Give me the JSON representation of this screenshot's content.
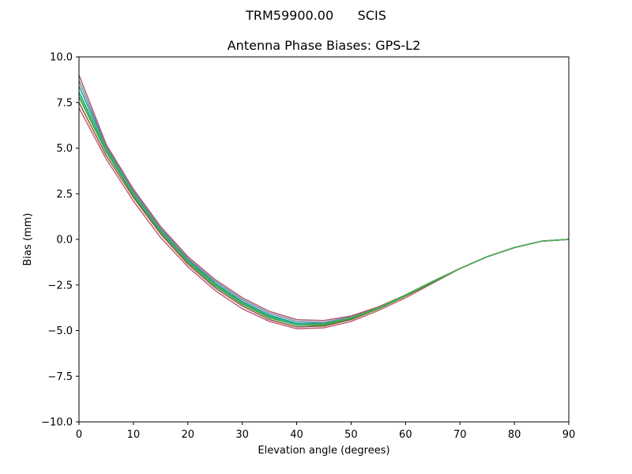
{
  "figure": {
    "suptitle": "TRM59900.00      SCIS"
  },
  "chart_data": {
    "type": "line",
    "title": "Antenna Phase Biases: GPS-L2",
    "xlabel": "Elevation angle (degrees)",
    "ylabel": "Bias (mm)",
    "xlim": [
      0,
      90
    ],
    "ylim": [
      -10,
      10
    ],
    "xticks": [
      0,
      10,
      20,
      30,
      40,
      50,
      60,
      70,
      80,
      90
    ],
    "yticks": [
      10.0,
      7.5,
      5.0,
      2.5,
      0.0,
      -2.5,
      -5.0,
      -7.5,
      -10.0
    ],
    "ytick_labels": [
      "10.0",
      "7.5",
      "5.0",
      "2.5",
      "0.0",
      "−2.5",
      "−5.0",
      "−7.5",
      "−10.0"
    ],
    "grid": false,
    "legend": "none",
    "x": [
      0,
      5,
      10,
      15,
      20,
      25,
      30,
      35,
      40,
      45,
      50,
      55,
      60,
      65,
      70,
      75,
      80,
      85,
      90
    ],
    "series": [
      {
        "color": "#c06070",
        "values": [
          7.2,
          4.4,
          2.1,
          0.1,
          -1.5,
          -2.8,
          -3.8,
          -4.5,
          -4.9,
          -4.85,
          -4.5,
          -3.9,
          -3.2,
          -2.4,
          -1.6,
          -0.95,
          -0.45,
          -0.1,
          0.0
        ]
      },
      {
        "color": "#8c564b",
        "values": [
          7.5,
          4.6,
          2.3,
          0.3,
          -1.35,
          -2.65,
          -3.65,
          -4.4,
          -4.8,
          -4.75,
          -4.4,
          -3.8,
          -3.1,
          -2.35,
          -1.6,
          -0.95,
          -0.45,
          -0.1,
          0.0
        ]
      },
      {
        "color": "#2ca02c",
        "values": [
          7.8,
          4.8,
          2.4,
          0.4,
          -1.25,
          -2.55,
          -3.55,
          -4.3,
          -4.7,
          -4.7,
          -4.35,
          -3.8,
          -3.1,
          -2.35,
          -1.6,
          -0.95,
          -0.45,
          -0.1,
          0.0
        ]
      },
      {
        "color": "#17becf",
        "values": [
          8.1,
          4.95,
          2.5,
          0.5,
          -1.15,
          -2.45,
          -3.45,
          -4.2,
          -4.65,
          -4.6,
          -4.3,
          -3.75,
          -3.05,
          -2.3,
          -1.6,
          -0.95,
          -0.45,
          -0.1,
          0.0
        ]
      },
      {
        "color": "#1f9e89",
        "values": [
          8.4,
          5.05,
          2.6,
          0.55,
          -1.1,
          -2.4,
          -3.4,
          -4.15,
          -4.6,
          -4.6,
          -4.3,
          -3.75,
          -3.05,
          -2.3,
          -1.6,
          -0.95,
          -0.45,
          -0.1,
          0.0
        ]
      },
      {
        "color": "#6a8caf",
        "values": [
          8.7,
          5.1,
          2.65,
          0.6,
          -1.05,
          -2.3,
          -3.3,
          -4.05,
          -4.5,
          -4.55,
          -4.25,
          -3.75,
          -3.05,
          -2.3,
          -1.6,
          -0.95,
          -0.45,
          -0.1,
          0.0
        ]
      },
      {
        "color": "#b05a6a",
        "values": [
          9.0,
          5.2,
          2.75,
          0.7,
          -0.95,
          -2.2,
          -3.2,
          -3.95,
          -4.4,
          -4.45,
          -4.2,
          -3.7,
          -3.05,
          -2.3,
          -1.6,
          -0.95,
          -0.45,
          -0.1,
          0.0
        ]
      },
      {
        "color": "#4caf50",
        "values": [
          8.0,
          4.9,
          2.45,
          0.45,
          -1.2,
          -2.5,
          -3.5,
          -4.25,
          -4.7,
          -4.65,
          -4.3,
          -3.75,
          -3.05,
          -2.3,
          -1.6,
          -0.95,
          -0.45,
          -0.1,
          0.0
        ]
      }
    ]
  }
}
